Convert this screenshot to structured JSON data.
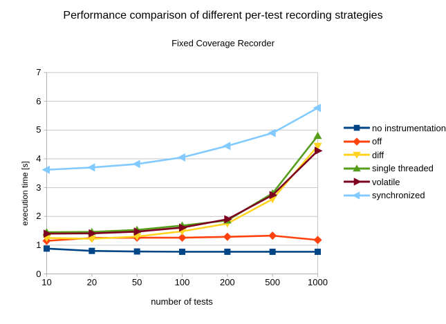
{
  "header": {
    "title": "Performance comparison of different per-test recording strategies",
    "subtitle": "Fixed Coverage Recorder"
  },
  "chart_data": {
    "type": "line",
    "title": "Performance comparison of different per-test recording strategies",
    "subtitle": "Fixed Coverage Recorder",
    "xlabel": "number of tests",
    "ylabel": "execution time [s]",
    "categories": [
      "10",
      "20",
      "50",
      "100",
      "200",
      "500",
      "1000"
    ],
    "ylim": [
      0,
      7
    ],
    "yticks": [
      0,
      1,
      2,
      3,
      4,
      5,
      6,
      7
    ],
    "grid": "horizontal",
    "legend_position": "right",
    "series": [
      {
        "name": "no instrumentation",
        "color": "#004586",
        "marker": "square",
        "values": [
          0.88,
          0.8,
          0.78,
          0.77,
          0.77,
          0.77,
          0.77
        ]
      },
      {
        "name": "off",
        "color": "#FF420E",
        "marker": "diamond",
        "values": [
          1.15,
          1.25,
          1.26,
          1.26,
          1.29,
          1.33,
          1.18
        ]
      },
      {
        "name": "diff",
        "color": "#FFD320",
        "marker": "triangle-down",
        "values": [
          1.25,
          1.22,
          1.3,
          1.48,
          1.75,
          2.6,
          4.45
        ]
      },
      {
        "name": "single threaded",
        "color": "#579D1C",
        "marker": "triangle-up",
        "values": [
          1.45,
          1.46,
          1.53,
          1.68,
          1.86,
          2.8,
          4.8
        ]
      },
      {
        "name": "volatile",
        "color": "#7E0021",
        "marker": "arrow-right",
        "values": [
          1.4,
          1.41,
          1.47,
          1.61,
          1.9,
          2.74,
          4.28
        ]
      },
      {
        "name": "synchronized",
        "color": "#83CAFF",
        "marker": "arrow-left",
        "values": [
          3.62,
          3.7,
          3.82,
          4.05,
          4.45,
          4.9,
          5.77
        ]
      }
    ]
  },
  "colors": {
    "background": "#ffffff",
    "gridline": "#c6c6c6",
    "axis": "#b0b0b0",
    "text": "#000000"
  }
}
